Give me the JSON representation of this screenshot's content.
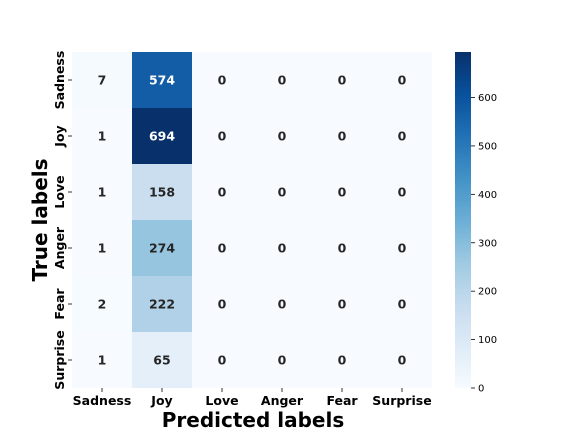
{
  "chart_data": {
    "type": "heatmap",
    "title": "",
    "xlabel": "Predicted labels",
    "ylabel": "True labels",
    "x_categories": [
      "Sadness",
      "Joy",
      "Love",
      "Anger",
      "Fear",
      "Surprise"
    ],
    "y_categories": [
      "Sadness",
      "Joy",
      "Love",
      "Anger",
      "Fear",
      "Surprise"
    ],
    "values": [
      [
        7,
        574,
        0,
        0,
        0,
        0
      ],
      [
        1,
        694,
        0,
        0,
        0,
        0
      ],
      [
        1,
        158,
        0,
        0,
        0,
        0
      ],
      [
        1,
        274,
        0,
        0,
        0,
        0
      ],
      [
        2,
        222,
        0,
        0,
        0,
        0
      ],
      [
        1,
        65,
        0,
        0,
        0,
        0
      ]
    ],
    "colormap": "Blues",
    "colorbar": {
      "vmin": 0,
      "vmax": 694,
      "ticks": [
        0,
        100,
        200,
        300,
        400,
        500,
        600
      ]
    }
  }
}
